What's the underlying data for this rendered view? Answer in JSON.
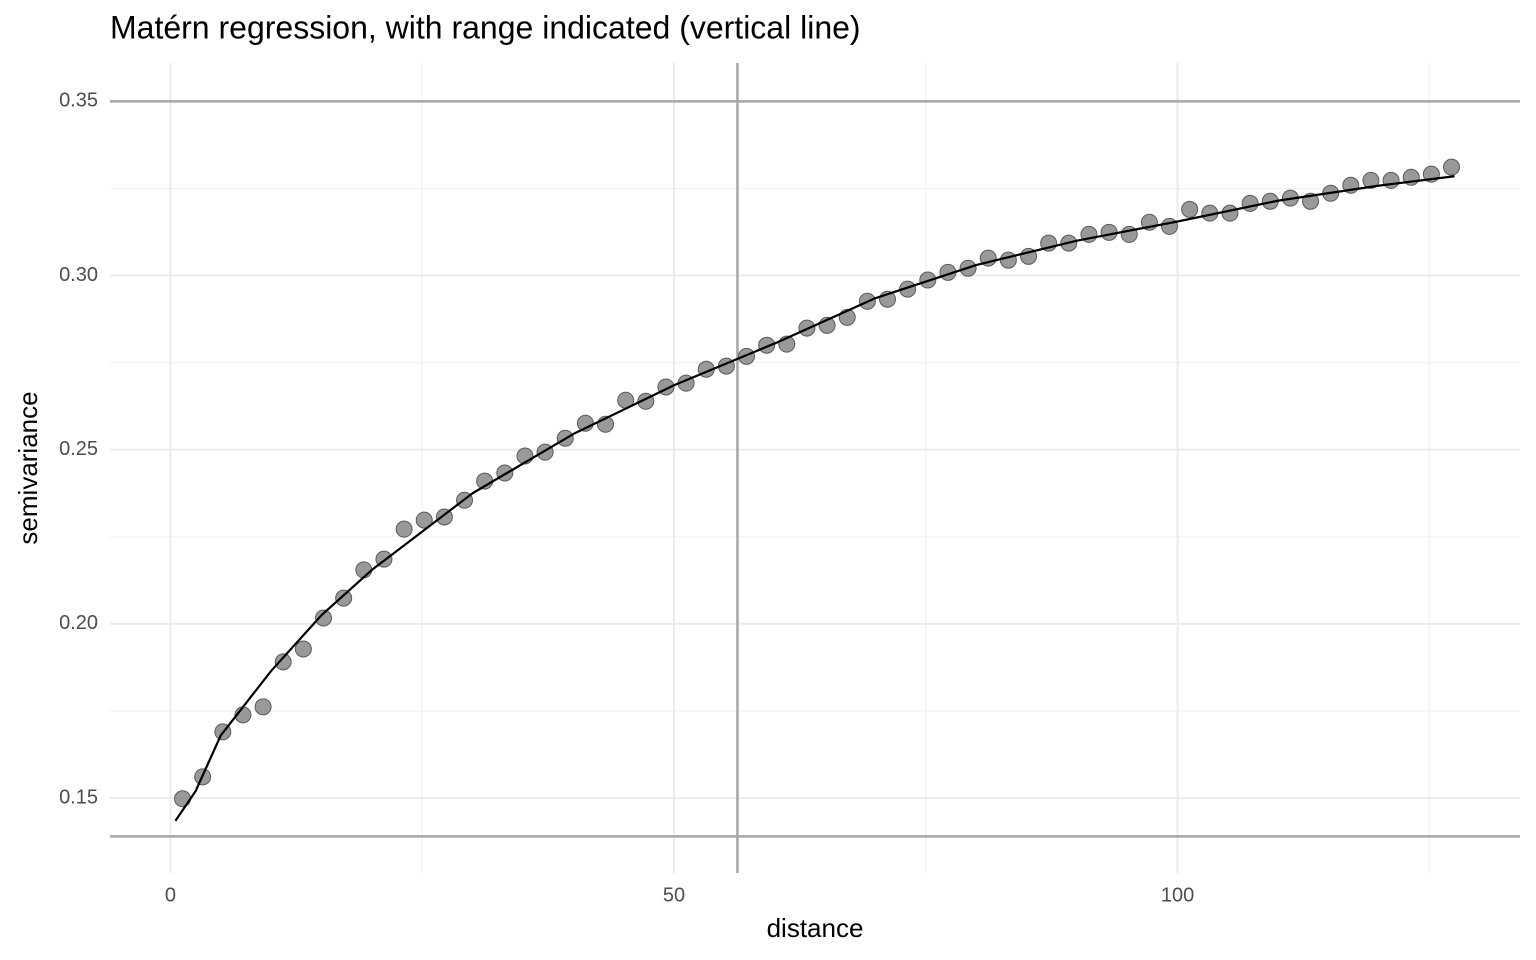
{
  "chart_data": {
    "type": "scatter",
    "title": "Matérn regression, with range indicated (vertical line)",
    "x_label": "distance",
    "y_label": "semivariance",
    "xlim": [
      -6,
      134
    ],
    "ylim": [
      0.1285,
      0.361
    ],
    "xticks": [
      0,
      50,
      100
    ],
    "yticks": [
      {
        "value": 0.15,
        "label": "0.15"
      },
      {
        "value": 0.2,
        "label": "0.20"
      },
      {
        "value": 0.25,
        "label": "0.25"
      },
      {
        "value": 0.3,
        "label": "0.30"
      },
      {
        "value": 0.35,
        "label": "0.35"
      }
    ],
    "minor_xticks": [
      25,
      75,
      125
    ],
    "minor_yticks": [
      0.175,
      0.225,
      0.275,
      0.325
    ],
    "grid": true,
    "hlines": [
      0.139,
      0.35
    ],
    "vline": 56.3,
    "ref_color": "#a6a6a6",
    "series": [
      {
        "kind": "points",
        "color": "#7f7f7f",
        "x": [
          1.2,
          3.2,
          5.2,
          7.2,
          9.2,
          11.2,
          13.2,
          15.2,
          17.2,
          19.2,
          21.2,
          23.2,
          25.2,
          27.2,
          29.2,
          31.2,
          33.2,
          35.2,
          37.2,
          39.2,
          41.2,
          43.2,
          45.2,
          47.2,
          49.2,
          51.2,
          53.2,
          55.2,
          57.2,
          59.2,
          61.2,
          63.2,
          65.2,
          67.2,
          69.2,
          71.2,
          73.2,
          75.2,
          77.2,
          79.2,
          81.2,
          83.2,
          85.2,
          87.2,
          89.2,
          91.2,
          93.2,
          95.2,
          97.2,
          99.2,
          101.2,
          103.2,
          105.2,
          107.2,
          109.2,
          111.2,
          113.2,
          115.2,
          117.2,
          119.2,
          121.2,
          123.2,
          125.2,
          127.2
        ],
        "values": [
          0.1498,
          0.1561,
          0.169,
          0.1739,
          0.1762,
          0.1891,
          0.1928,
          0.2017,
          0.2074,
          0.2155,
          0.2186,
          0.2272,
          0.2298,
          0.2307,
          0.2355,
          0.241,
          0.2433,
          0.2482,
          0.2493,
          0.2533,
          0.2576,
          0.2573,
          0.2642,
          0.2639,
          0.268,
          0.2691,
          0.2731,
          0.274,
          0.2768,
          0.28,
          0.2803,
          0.2849,
          0.2857,
          0.288,
          0.2926,
          0.2932,
          0.2961,
          0.2987,
          0.3009,
          0.3021,
          0.305,
          0.3044,
          0.3055,
          0.3093,
          0.3093,
          0.3118,
          0.3124,
          0.3118,
          0.3153,
          0.3141,
          0.319,
          0.3179,
          0.3179,
          0.3207,
          0.3213,
          0.3222,
          0.3213,
          0.3236,
          0.3259,
          0.3273,
          0.3273,
          0.3282,
          0.3291,
          0.3311
        ]
      },
      {
        "kind": "line",
        "color": "#000000",
        "x": [
          0.5,
          2.5,
          5,
          10,
          15,
          20,
          30,
          40,
          50,
          60,
          70,
          80,
          90,
          100,
          110,
          120,
          127.5
        ],
        "values": [
          0.1435,
          0.152,
          0.168,
          0.1865,
          0.2025,
          0.2155,
          0.2375,
          0.2545,
          0.2685,
          0.2805,
          0.2935,
          0.303,
          0.31,
          0.3155,
          0.3215,
          0.3258,
          0.3285
        ]
      }
    ]
  }
}
